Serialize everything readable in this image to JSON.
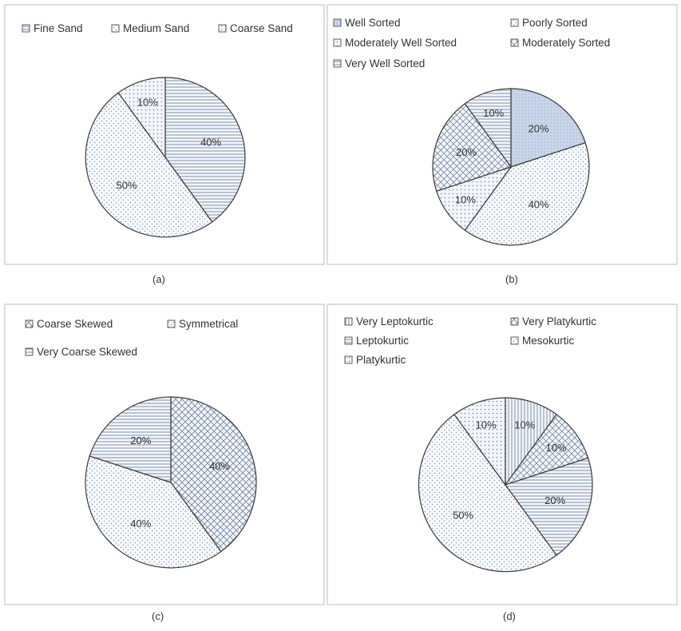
{
  "chart_data": [
    {
      "type": "pie",
      "caption": "(a)",
      "legend": [
        "Fine Sand",
        "Medium Sand",
        "Coarse Sand"
      ],
      "slices": [
        {
          "name": "",
          "value": 40,
          "label": "40%",
          "pattern": "hlines"
        },
        {
          "name": "",
          "value": 50,
          "label": "50%",
          "pattern": "dots"
        },
        {
          "name": "",
          "value": 10,
          "label": "10%",
          "pattern": "dots2"
        }
      ]
    },
    {
      "type": "pie",
      "caption": "(b)",
      "legend": [
        "Well Sorted",
        "Poorly Sorted",
        "Moderately Well Sorted",
        "Moderately Sorted",
        "Very Well Sorted"
      ],
      "slices": [
        {
          "name": "",
          "value": 20,
          "label": "20%",
          "pattern": "solid"
        },
        {
          "name": "",
          "value": 40,
          "label": "40%",
          "pattern": "dots"
        },
        {
          "name": "",
          "value": 10,
          "label": "10%",
          "pattern": "dots2"
        },
        {
          "name": "",
          "value": 20,
          "label": "20%",
          "pattern": "diamond"
        },
        {
          "name": "",
          "value": 10,
          "label": "10%",
          "pattern": "hlines"
        }
      ]
    },
    {
      "type": "pie",
      "caption": "(c)",
      "legend": [
        "Coarse  Skewed",
        "Symmetrical",
        "Very Coarse Skewed"
      ],
      "slices": [
        {
          "name": "",
          "value": 40,
          "label": "40%",
          "pattern": "cross"
        },
        {
          "name": "",
          "value": 40,
          "label": "40%",
          "pattern": "dots"
        },
        {
          "name": "",
          "value": 20,
          "label": "20%",
          "pattern": "hlines"
        }
      ]
    },
    {
      "type": "pie",
      "caption": "(d)",
      "legend": [
        "Very Leptokurtic",
        "Very Platykurtic",
        "Leptokurtic",
        "Mesokurtic",
        "Platykurtic"
      ],
      "slices": [
        {
          "name": "",
          "value": 10,
          "label": "10%",
          "pattern": "vlines"
        },
        {
          "name": "",
          "value": 10,
          "label": "10%",
          "pattern": "diamond"
        },
        {
          "name": "",
          "value": 20,
          "label": "20%",
          "pattern": "hlines"
        },
        {
          "name": "",
          "value": 50,
          "label": "50%",
          "pattern": "dots"
        },
        {
          "name": "",
          "value": 10,
          "label": "10%",
          "pattern": "dots2"
        }
      ]
    }
  ],
  "colors": {
    "outline": "#3a3a3a",
    "pattern": "#6f86a6",
    "fill": "#eef2f8",
    "panel_border": "#bdbdbd"
  }
}
